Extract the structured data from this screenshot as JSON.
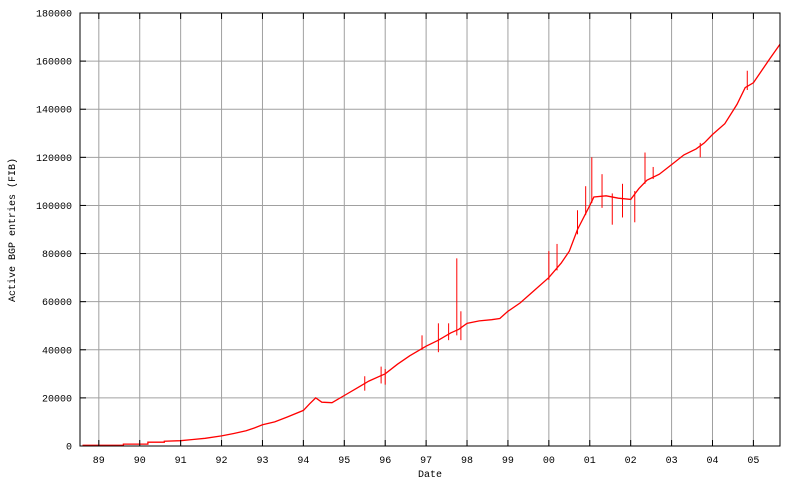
{
  "chart_data": {
    "type": "line",
    "title": "",
    "xlabel": "Date",
    "ylabel": "Active BGP entries (FIB)",
    "xlim": [
      1988.54,
      2005.65
    ],
    "ylim": [
      0,
      180000
    ],
    "grid": true,
    "x_ticks": [
      {
        "year": 1989,
        "label": "89"
      },
      {
        "year": 1990,
        "label": "90"
      },
      {
        "year": 1991,
        "label": "91"
      },
      {
        "year": 1992,
        "label": "92"
      },
      {
        "year": 1993,
        "label": "93"
      },
      {
        "year": 1994,
        "label": "94"
      },
      {
        "year": 1995,
        "label": "95"
      },
      {
        "year": 1996,
        "label": "96"
      },
      {
        "year": 1997,
        "label": "97"
      },
      {
        "year": 1998,
        "label": "98"
      },
      {
        "year": 1999,
        "label": "99"
      },
      {
        "year": 2000,
        "label": "00"
      },
      {
        "year": 2001,
        "label": "01"
      },
      {
        "year": 2002,
        "label": "02"
      },
      {
        "year": 2003,
        "label": "03"
      },
      {
        "year": 2004,
        "label": "04"
      },
      {
        "year": 2005,
        "label": "05"
      }
    ],
    "y_ticks": [
      {
        "value": 0,
        "label": "0"
      },
      {
        "value": 20000,
        "label": "20000"
      },
      {
        "value": 40000,
        "label": "40000"
      },
      {
        "value": 60000,
        "label": "60000"
      },
      {
        "value": 80000,
        "label": "80000"
      },
      {
        "value": 100000,
        "label": "100000"
      },
      {
        "value": 120000,
        "label": "120000"
      },
      {
        "value": 140000,
        "label": "140000"
      },
      {
        "value": 160000,
        "label": "160000"
      },
      {
        "value": 180000,
        "label": "180000"
      }
    ],
    "series": [
      {
        "color": "#ff0000",
        "points": [
          [
            1988.6,
            300
          ],
          [
            1989.6,
            300
          ],
          [
            1989.6,
            800
          ],
          [
            1990.2,
            800
          ],
          [
            1990.2,
            1600
          ],
          [
            1990.6,
            1600
          ],
          [
            1990.6,
            2000
          ],
          [
            1991.0,
            2200
          ],
          [
            1991.3,
            2700
          ],
          [
            1991.6,
            3200
          ],
          [
            1992.0,
            4200
          ],
          [
            1992.3,
            5200
          ],
          [
            1992.6,
            6300
          ],
          [
            1992.8,
            7500
          ],
          [
            1993.0,
            8800
          ],
          [
            1993.3,
            10000
          ],
          [
            1993.6,
            12000
          ],
          [
            1994.0,
            14800
          ],
          [
            1994.15,
            17500
          ],
          [
            1994.3,
            20000
          ],
          [
            1994.45,
            18200
          ],
          [
            1994.7,
            18000
          ],
          [
            1995.0,
            21000
          ],
          [
            1995.3,
            24000
          ],
          [
            1995.6,
            27000
          ],
          [
            1996.0,
            30000
          ],
          [
            1996.3,
            34000
          ],
          [
            1996.6,
            37500
          ],
          [
            1997.0,
            41500
          ],
          [
            1997.3,
            44000
          ],
          [
            1997.6,
            47000
          ],
          [
            1997.8,
            48500
          ],
          [
            1998.0,
            51000
          ],
          [
            1998.3,
            52000
          ],
          [
            1998.6,
            52500
          ],
          [
            1998.8,
            53000
          ],
          [
            1999.0,
            56000
          ],
          [
            1999.3,
            59500
          ],
          [
            1999.6,
            64000
          ],
          [
            2000.0,
            70000
          ],
          [
            2000.3,
            76000
          ],
          [
            2000.5,
            81000
          ],
          [
            2000.7,
            90000
          ],
          [
            2001.0,
            100000
          ],
          [
            2001.1,
            103500
          ],
          [
            2001.4,
            104000
          ],
          [
            2001.7,
            103000
          ],
          [
            2002.0,
            102500
          ],
          [
            2002.2,
            107000
          ],
          [
            2002.4,
            110500
          ],
          [
            2002.7,
            113000
          ],
          [
            2003.0,
            117000
          ],
          [
            2003.3,
            121000
          ],
          [
            2003.6,
            123500
          ],
          [
            2003.8,
            126000
          ],
          [
            2004.0,
            129500
          ],
          [
            2004.3,
            134000
          ],
          [
            2004.6,
            142000
          ],
          [
            2004.8,
            149000
          ],
          [
            2005.0,
            151000
          ],
          [
            2005.2,
            156000
          ],
          [
            2005.4,
            161000
          ],
          [
            2005.65,
            167000
          ]
        ],
        "spikes": [
          [
            1995.5,
            23000,
            29000
          ],
          [
            1995.9,
            26000,
            33000
          ],
          [
            1996.0,
            25500,
            32000
          ],
          [
            1996.9,
            40000,
            46000
          ],
          [
            1997.3,
            39000,
            51000
          ],
          [
            1997.55,
            44000,
            51000
          ],
          [
            1997.75,
            46000,
            78000
          ],
          [
            1997.85,
            44000,
            56000
          ],
          [
            2000.0,
            69000,
            81000
          ],
          [
            2000.2,
            73000,
            84000
          ],
          [
            2000.7,
            88000,
            98000
          ],
          [
            2000.9,
            96000,
            108000
          ],
          [
            2001.05,
            101000,
            120000
          ],
          [
            2001.3,
            99000,
            113000
          ],
          [
            2001.55,
            92000,
            105000
          ],
          [
            2001.8,
            95000,
            109000
          ],
          [
            2002.1,
            93000,
            106000
          ],
          [
            2002.35,
            109000,
            122000
          ],
          [
            2002.55,
            111000,
            116000
          ],
          [
            2003.7,
            120000,
            126000
          ],
          [
            2004.85,
            148000,
            156000
          ]
        ]
      }
    ]
  }
}
